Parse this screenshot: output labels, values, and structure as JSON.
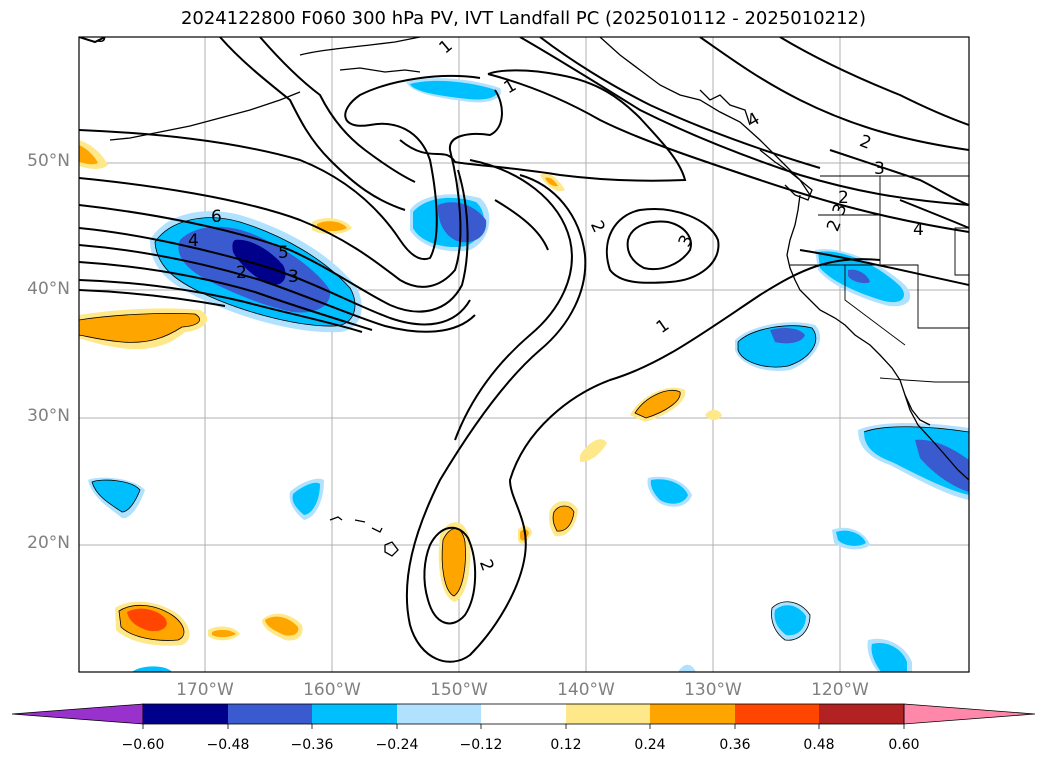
{
  "title": "2024122800 F060 300 hPa PV, IVT Landfall PC (2025010112 - 2025010212)",
  "map": {
    "lat_labels": [
      "50°N",
      "40°N",
      "30°N",
      "20°N"
    ],
    "lon_labels": [
      "170°W",
      "160°W",
      "150°W",
      "140°W",
      "130°W",
      "120°W"
    ],
    "contour_labels": [
      "1",
      "1",
      "1",
      "2",
      "2",
      "2",
      "2",
      "3",
      "3",
      "3",
      "4",
      "4",
      "5",
      "6",
      "3",
      "5",
      "2",
      "2",
      "4"
    ]
  },
  "colorbar": {
    "ticks": [
      "−0.60",
      "−0.48",
      "−0.36",
      "−0.24",
      "−0.12",
      "0.12",
      "0.24",
      "0.36",
      "0.48",
      "0.60"
    ],
    "colors": [
      "#9932cc",
      "#00008b",
      "#3a5bd0",
      "#00bfff",
      "#b0e2ff",
      "#ffffff",
      "#ffe88a",
      "#ffa500",
      "#ff4500",
      "#b22222",
      "#ff88aa"
    ]
  }
}
